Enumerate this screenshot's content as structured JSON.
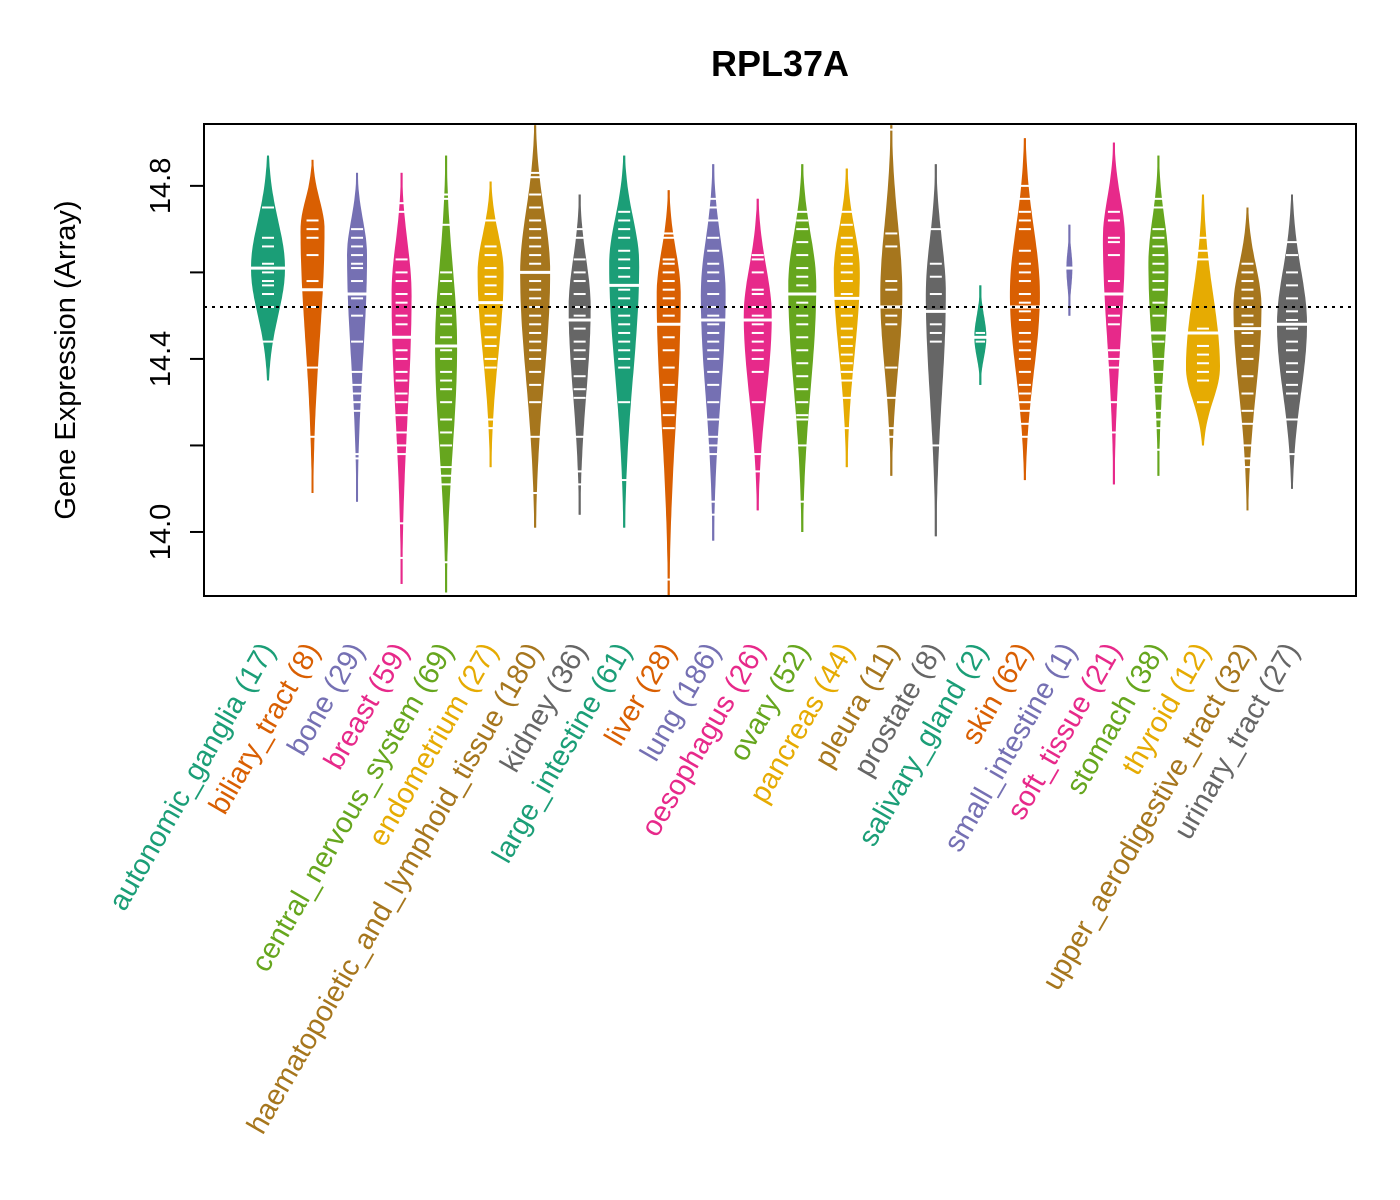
{
  "chart_data": {
    "type": "violin",
    "title": "RPL37A",
    "xlabel": "",
    "ylabel": "Gene Expression (Array)",
    "ylim": [
      13.852,
      14.943
    ],
    "yticks": [
      14.0,
      14.2,
      14.4,
      14.6,
      14.8
    ],
    "ytick_labels": [
      "14.0",
      "",
      "14.4",
      "",
      "14.8"
    ],
    "reference_line": 14.52,
    "grid": false,
    "legend": "none",
    "groups": [
      {
        "name": "autonomic_ganglia",
        "n": 17,
        "label": "autonomic_ganglia (17)",
        "color": "#1B9E77",
        "min": 14.35,
        "max": 14.87,
        "median": 14.61,
        "peak": 14.61,
        "width": 0.85,
        "points": [
          14.75,
          14.68,
          14.66,
          14.62,
          14.6,
          14.58,
          14.57,
          14.55,
          14.52,
          14.44
        ]
      },
      {
        "name": "biliary_tract",
        "n": 8,
        "label": "biliary_tract (8)",
        "color": "#D95F02",
        "min": 14.09,
        "max": 14.86,
        "median": 14.56,
        "peak": 14.7,
        "width": 0.6,
        "points": [
          14.72,
          14.7,
          14.68,
          14.64,
          14.58,
          14.52,
          14.38,
          14.22
        ]
      },
      {
        "name": "bone",
        "n": 29,
        "label": "bone (29)",
        "color": "#7570B3",
        "min": 14.07,
        "max": 14.83,
        "median": 14.55,
        "peak": 14.64,
        "width": 0.5,
        "points": [
          14.7,
          14.68,
          14.66,
          14.64,
          14.62,
          14.61,
          14.58,
          14.54,
          14.5,
          14.44,
          14.37,
          14.34,
          14.32,
          14.3,
          14.28,
          14.18,
          14.17
        ]
      },
      {
        "name": "breast",
        "n": 59,
        "label": "breast (59)",
        "color": "#E7298A",
        "min": 13.88,
        "max": 14.83,
        "median": 14.45,
        "peak": 14.55,
        "width": 0.5,
        "points": [
          14.76,
          14.74,
          14.63,
          14.6,
          14.58,
          14.55,
          14.53,
          14.5,
          14.48,
          14.45,
          14.42,
          14.4,
          14.37,
          14.35,
          14.32,
          14.3,
          14.27,
          14.23,
          14.2,
          14.18,
          14.02,
          13.94
        ]
      },
      {
        "name": "central_nervous_system",
        "n": 69,
        "label": "central_nervous_system (69)",
        "color": "#66A61E",
        "min": 13.86,
        "max": 14.87,
        "median": 14.43,
        "peak": 14.43,
        "width": 0.55,
        "points": [
          14.78,
          14.77,
          14.71,
          14.6,
          14.58,
          14.55,
          14.52,
          14.5,
          14.48,
          14.45,
          14.42,
          14.4,
          14.37,
          14.35,
          14.33,
          14.3,
          14.26,
          14.23,
          14.2,
          14.15,
          14.13,
          14.11,
          13.93
        ]
      },
      {
        "name": "endometrium",
        "n": 27,
        "label": "endometrium (27)",
        "color": "#E6AB02",
        "min": 14.15,
        "max": 14.81,
        "median": 14.53,
        "peak": 14.6,
        "width": 0.65,
        "points": [
          14.72,
          14.66,
          14.64,
          14.61,
          14.59,
          14.57,
          14.55,
          14.5,
          14.48,
          14.45,
          14.43,
          14.4,
          14.38,
          14.26,
          14.24
        ]
      },
      {
        "name": "haematopoietic_and_lymphoid_tissue",
        "n": 180,
        "label": "haematopoietic_and_lymphoid_tissue (180)",
        "color": "#A6761D",
        "min": 14.01,
        "max": 14.94,
        "median": 14.6,
        "peak": 14.6,
        "width": 0.75,
        "points": [
          14.83,
          14.82,
          14.78,
          14.75,
          14.72,
          14.7,
          14.68,
          14.66,
          14.64,
          14.62,
          14.6,
          14.58,
          14.56,
          14.54,
          14.52,
          14.5,
          14.48,
          14.46,
          14.44,
          14.42,
          14.4,
          14.37,
          14.34,
          14.3,
          14.22,
          14.09
        ]
      },
      {
        "name": "kidney",
        "n": 36,
        "label": "kidney (36)",
        "color": "#666666",
        "min": 14.04,
        "max": 14.78,
        "median": 14.49,
        "peak": 14.52,
        "width": 0.55,
        "points": [
          14.7,
          14.68,
          14.63,
          14.6,
          14.58,
          14.55,
          14.52,
          14.5,
          14.47,
          14.44,
          14.42,
          14.4,
          14.36,
          14.33,
          14.31,
          14.22,
          14.14,
          14.11
        ]
      },
      {
        "name": "large_intestine",
        "n": 61,
        "label": "large_intestine (61)",
        "color": "#1B9E77",
        "min": 14.01,
        "max": 14.87,
        "median": 14.57,
        "peak": 14.62,
        "width": 0.75,
        "points": [
          14.74,
          14.72,
          14.7,
          14.68,
          14.65,
          14.63,
          14.61,
          14.59,
          14.56,
          14.54,
          14.52,
          14.5,
          14.48,
          14.46,
          14.44,
          14.42,
          14.4,
          14.38,
          14.3,
          14.12
        ]
      },
      {
        "name": "liver",
        "n": 28,
        "label": "liver (28)",
        "color": "#D95F02",
        "min": 13.85,
        "max": 14.79,
        "median": 14.48,
        "peak": 14.55,
        "width": 0.6,
        "points": [
          14.69,
          14.68,
          14.63,
          14.62,
          14.6,
          14.58,
          14.56,
          14.54,
          14.52,
          14.5,
          14.45,
          14.42,
          14.38,
          14.34,
          14.3,
          14.27,
          14.24,
          13.89
        ]
      },
      {
        "name": "lung",
        "n": 186,
        "label": "lung (186)",
        "color": "#7570B3",
        "min": 13.98,
        "max": 14.85,
        "median": 14.49,
        "peak": 14.55,
        "width": 0.62,
        "points": [
          14.77,
          14.75,
          14.72,
          14.68,
          14.65,
          14.62,
          14.6,
          14.58,
          14.55,
          14.52,
          14.5,
          14.48,
          14.46,
          14.44,
          14.42,
          14.4,
          14.37,
          14.34,
          14.3,
          14.26,
          14.22,
          14.2,
          14.18,
          14.07,
          14.04
        ]
      },
      {
        "name": "oesophagus",
        "n": 26,
        "label": "oesophagus (26)",
        "color": "#E7298A",
        "min": 14.05,
        "max": 14.77,
        "median": 14.49,
        "peak": 14.5,
        "width": 0.7,
        "points": [
          14.64,
          14.63,
          14.6,
          14.56,
          14.55,
          14.52,
          14.5,
          14.48,
          14.46,
          14.44,
          14.42,
          14.4,
          14.37,
          14.3,
          14.18,
          14.14
        ]
      },
      {
        "name": "ovary",
        "n": 52,
        "label": "ovary (52)",
        "color": "#66A61E",
        "min": 14.0,
        "max": 14.85,
        "median": 14.55,
        "peak": 14.57,
        "width": 0.7,
        "points": [
          14.74,
          14.72,
          14.7,
          14.67,
          14.64,
          14.61,
          14.59,
          14.57,
          14.55,
          14.53,
          14.5,
          14.48,
          14.45,
          14.42,
          14.39,
          14.36,
          14.33,
          14.3,
          14.27,
          14.26,
          14.2,
          14.07
        ]
      },
      {
        "name": "pancreas",
        "n": 44,
        "label": "pancreas (44)",
        "color": "#E6AB02",
        "min": 14.15,
        "max": 14.84,
        "median": 14.54,
        "peak": 14.6,
        "width": 0.65,
        "points": [
          14.74,
          14.71,
          14.68,
          14.66,
          14.64,
          14.62,
          14.6,
          14.58,
          14.55,
          14.52,
          14.5,
          14.47,
          14.45,
          14.43,
          14.41,
          14.39,
          14.37,
          14.35,
          14.31,
          14.24
        ]
      },
      {
        "name": "pleura",
        "n": 11,
        "label": "pleura (11)",
        "color": "#A6761D",
        "min": 14.13,
        "max": 14.94,
        "median": 14.52,
        "peak": 14.55,
        "width": 0.55,
        "points": [
          14.93,
          14.69,
          14.66,
          14.58,
          14.56,
          14.5,
          14.48,
          14.38,
          14.31,
          14.24,
          14.22
        ]
      },
      {
        "name": "prostate",
        "n": 8,
        "label": "prostate (8)",
        "color": "#666666",
        "min": 13.99,
        "max": 14.85,
        "median": 14.51,
        "peak": 14.55,
        "width": 0.5,
        "points": [
          14.7,
          14.62,
          14.59,
          14.55,
          14.48,
          14.46,
          14.44,
          14.2
        ]
      },
      {
        "name": "salivary_gland",
        "n": 2,
        "label": "salivary_gland (2)",
        "color": "#1B9E77",
        "min": 14.34,
        "max": 14.57,
        "median": 14.45,
        "peak": 14.45,
        "width": 0.3,
        "points": [
          14.46,
          14.44
        ]
      },
      {
        "name": "skin",
        "n": 62,
        "label": "skin (62)",
        "color": "#D95F02",
        "min": 14.12,
        "max": 14.91,
        "median": 14.52,
        "peak": 14.55,
        "width": 0.75,
        "points": [
          14.8,
          14.77,
          14.74,
          14.72,
          14.7,
          14.65,
          14.62,
          14.6,
          14.58,
          14.55,
          14.53,
          14.51,
          14.49,
          14.46,
          14.44,
          14.42,
          14.4,
          14.37,
          14.34,
          14.32,
          14.3,
          14.28,
          14.25,
          14.22
        ]
      },
      {
        "name": "small_intestine",
        "n": 1,
        "label": "small_intestine (1)",
        "color": "#7570B3",
        "min": 14.5,
        "max": 14.71,
        "median": 14.61,
        "peak": 14.61,
        "width": 0.15,
        "points": [
          14.61
        ]
      },
      {
        "name": "soft_tissue",
        "n": 21,
        "label": "soft_tissue (21)",
        "color": "#E7298A",
        "min": 14.11,
        "max": 14.9,
        "median": 14.55,
        "peak": 14.68,
        "width": 0.55,
        "points": [
          14.74,
          14.72,
          14.68,
          14.67,
          14.64,
          14.58,
          14.52,
          14.5,
          14.48,
          14.42,
          14.4,
          14.38,
          14.3,
          14.23
        ]
      },
      {
        "name": "stomach",
        "n": 38,
        "label": "stomach (38)",
        "color": "#66A61E",
        "min": 14.13,
        "max": 14.87,
        "median": 14.46,
        "peak": 14.62,
        "width": 0.5,
        "points": [
          14.77,
          14.75,
          14.7,
          14.68,
          14.66,
          14.64,
          14.62,
          14.6,
          14.58,
          14.56,
          14.53,
          14.5,
          14.44,
          14.4,
          14.37,
          14.34,
          14.32,
          14.28,
          14.26,
          14.24,
          14.19
        ]
      },
      {
        "name": "thyroid",
        "n": 12,
        "label": "thyroid (12)",
        "color": "#E6AB02",
        "min": 14.2,
        "max": 14.78,
        "median": 14.46,
        "peak": 14.38,
        "width": 0.85,
        "points": [
          14.68,
          14.65,
          14.63,
          14.47,
          14.43,
          14.41,
          14.39,
          14.37,
          14.35,
          14.3
        ]
      },
      {
        "name": "upper_aerodigestive_tract",
        "n": 32,
        "label": "upper_aerodigestive_tract (32)",
        "color": "#A6761D",
        "min": 14.05,
        "max": 14.75,
        "median": 14.47,
        "peak": 14.52,
        "width": 0.7,
        "points": [
          14.62,
          14.6,
          14.58,
          14.56,
          14.54,
          14.52,
          14.5,
          14.48,
          14.46,
          14.43,
          14.4,
          14.36,
          14.32,
          14.28,
          14.25,
          14.2,
          14.17,
          14.15
        ]
      },
      {
        "name": "urinary_tract",
        "n": 27,
        "label": "urinary_tract (27)",
        "color": "#666666",
        "min": 14.1,
        "max": 14.78,
        "median": 14.48,
        "peak": 14.48,
        "width": 0.75,
        "points": [
          14.67,
          14.64,
          14.6,
          14.57,
          14.54,
          14.51,
          14.49,
          14.47,
          14.44,
          14.42,
          14.39,
          14.37,
          14.34,
          14.32,
          14.26,
          14.18
        ]
      }
    ]
  }
}
